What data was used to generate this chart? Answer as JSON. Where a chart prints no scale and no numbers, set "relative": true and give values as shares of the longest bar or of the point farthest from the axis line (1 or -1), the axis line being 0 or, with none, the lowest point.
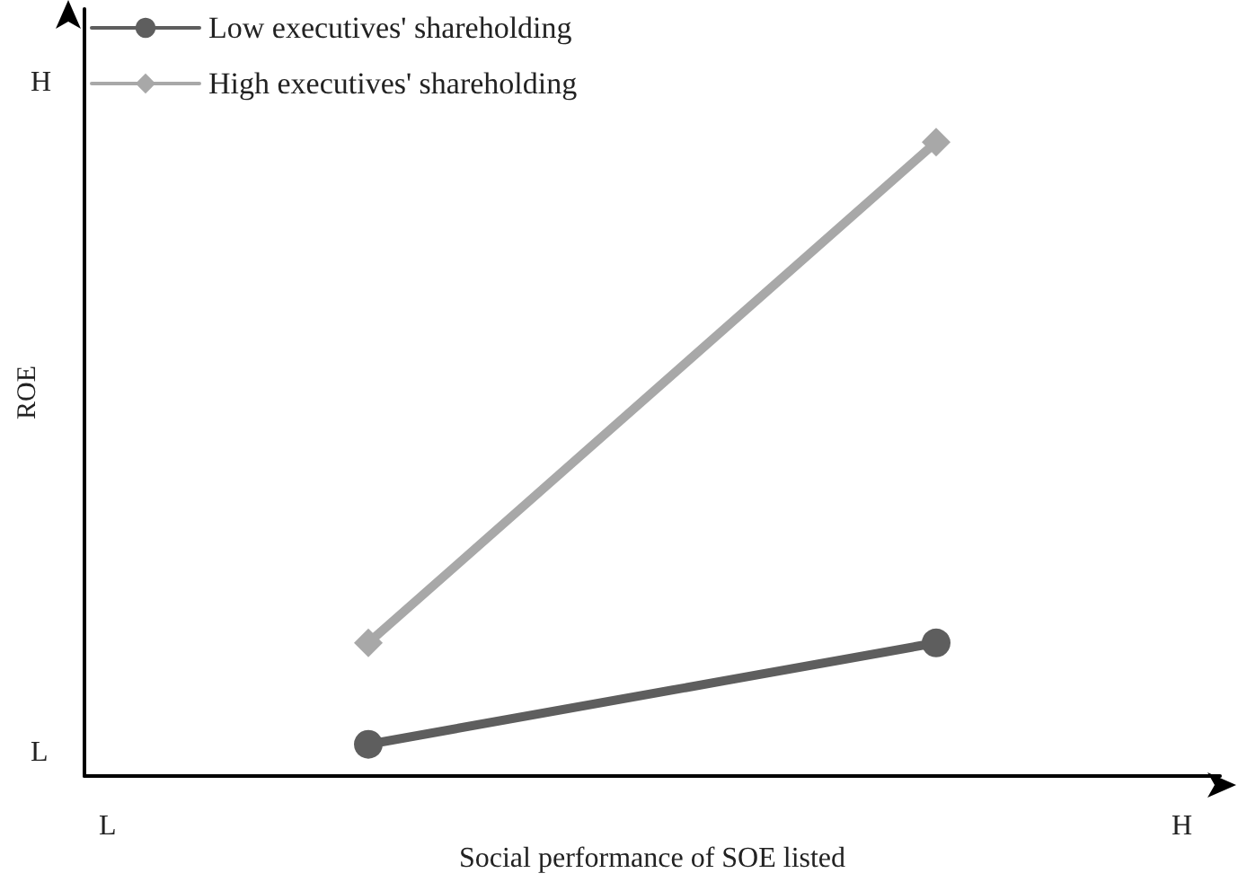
{
  "chart_data": {
    "type": "line",
    "xlabel": "Social performance of SOE listed",
    "ylabel": "ROE",
    "relative": true,
    "categories": [
      null,
      null
    ],
    "annotations": [
      "L",
      "H",
      "L",
      "H"
    ],
    "series": [
      {
        "name": "Low executives' shareholding",
        "color": "#5e5e5e",
        "values": [
          0.05,
          0.21
        ],
        "marker": "circle"
      },
      {
        "name": "High executives' shareholding",
        "color": "#a8a8a8",
        "values": [
          0.21,
          1
        ],
        "marker": "diamond"
      }
    ],
    "legend": "top left",
    "line_style": "solid"
  }
}
